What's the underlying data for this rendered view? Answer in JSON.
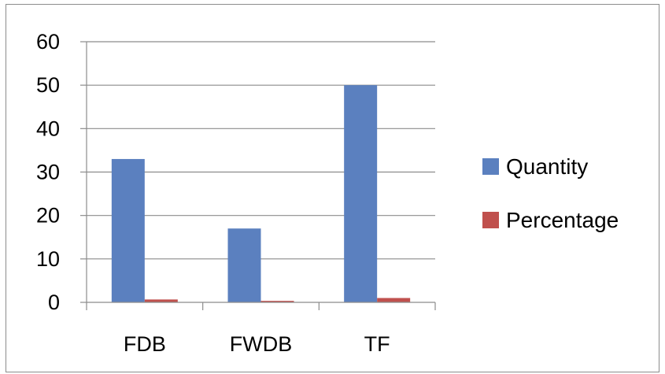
{
  "chart_data": {
    "type": "bar",
    "categories": [
      "FDB",
      "FWDB",
      "TF"
    ],
    "series": [
      {
        "name": "Quantity",
        "values": [
          33,
          17,
          50
        ],
        "color": "#5b80bf"
      },
      {
        "name": "Percentage",
        "values": [
          0.66,
          0.34,
          1
        ],
        "color": "#c0504d"
      }
    ],
    "title": "",
    "xlabel": "",
    "ylabel": "",
    "ylim": [
      0,
      60
    ],
    "yticks": [
      0,
      10,
      20,
      30,
      40,
      50,
      60
    ],
    "grid": true,
    "legend_position": "right"
  }
}
